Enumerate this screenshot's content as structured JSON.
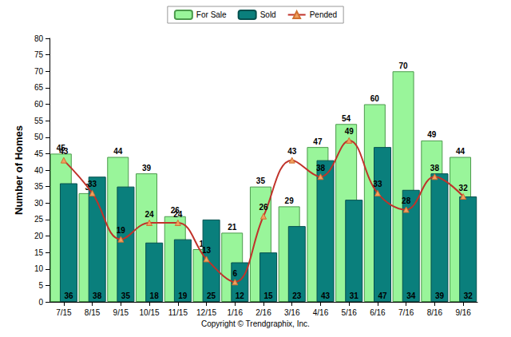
{
  "chart_data": {
    "type": "bar",
    "categories": [
      "7/15",
      "8/15",
      "9/15",
      "10/15",
      "11/15",
      "12/15",
      "1/16",
      "2/16",
      "3/16",
      "4/16",
      "5/16",
      "6/16",
      "7/16",
      "8/16",
      "9/16"
    ],
    "series": [
      {
        "name": "For Sale",
        "type": "bar",
        "color": "#99f59a",
        "values": [
          45,
          33,
          44,
          39,
          26,
          16,
          21,
          35,
          29,
          47,
          54,
          60,
          70,
          49,
          44
        ]
      },
      {
        "name": "Sold",
        "type": "bar",
        "color": "#0a7f7c",
        "values": [
          36,
          38,
          35,
          18,
          19,
          25,
          12,
          15,
          23,
          43,
          31,
          47,
          34,
          39,
          32
        ]
      },
      {
        "name": "Pended",
        "type": "line",
        "color": "#c0322a",
        "marker": "triangle",
        "line_style": "solid",
        "values": [
          43,
          33,
          19,
          24,
          24,
          13,
          6,
          26,
          43,
          38,
          49,
          33,
          28,
          38,
          32
        ]
      }
    ],
    "y_label": "Number of Homes",
    "annotations": [
      "Copyright © Trendgraphix, Inc."
    ],
    "ylim": [
      0,
      80
    ],
    "yticks": [
      0,
      5,
      10,
      15,
      20,
      25,
      30,
      35,
      40,
      45,
      50,
      55,
      60,
      65,
      70,
      75,
      80
    ],
    "grid": false,
    "legend": "top",
    "data_labels": true
  }
}
